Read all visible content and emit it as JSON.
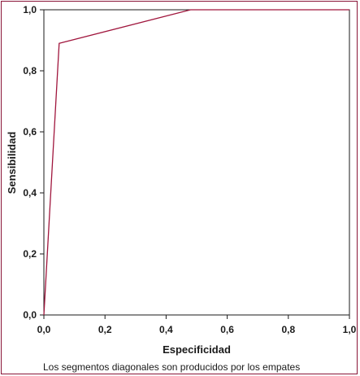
{
  "chart_data": {
    "type": "line",
    "xlabel": "Especificidad",
    "ylabel": "Sensibilidad",
    "note": "Los segmentos diagonales son producidos por los empates",
    "xlim": [
      0,
      1
    ],
    "ylim": [
      0,
      1
    ],
    "x_ticks": [
      "0,0",
      "0,2",
      "0,4",
      "0,6",
      "0,8",
      "1,0"
    ],
    "y_ticks": [
      "0,0",
      "0,2",
      "0,4",
      "0,6",
      "0,8",
      "1,0"
    ],
    "grid": false,
    "series": [
      {
        "color": "#a0163d",
        "points": [
          {
            "x": 0.0,
            "y": 0.0
          },
          {
            "x": 0.05,
            "y": 0.89
          },
          {
            "x": 0.48,
            "y": 1.0
          },
          {
            "x": 1.0,
            "y": 1.0
          }
        ]
      }
    ]
  },
  "colors": {
    "frame": "#8a1538",
    "line": "#a0163d",
    "axes": "#1a1a1a"
  }
}
